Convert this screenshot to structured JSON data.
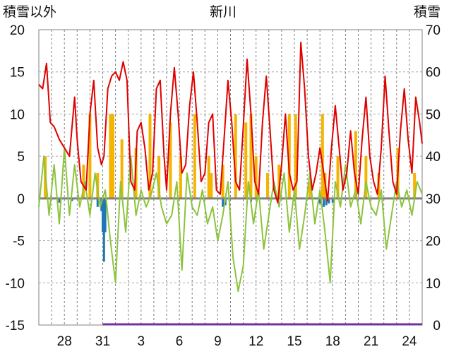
{
  "chart_data": {
    "type": "line",
    "title": "新川",
    "left_axis_label": "積雪以外",
    "right_axis_label": "積雪",
    "left_axis": {
      "ylim": [
        -15,
        20
      ],
      "ticks": [
        "20",
        "15",
        "10",
        "5",
        "0",
        "-5",
        "-10",
        "-15"
      ]
    },
    "right_axis": {
      "ylim": [
        0,
        70
      ],
      "ticks": [
        "70",
        "60",
        "50",
        "40",
        "30",
        "20",
        "10",
        "0"
      ]
    },
    "x_ticks": [
      "28",
      "31",
      "3",
      "6",
      "9",
      "12",
      "15",
      "18",
      "21",
      "24"
    ],
    "x_tick_days": [
      2,
      5,
      8,
      11,
      14,
      17,
      20,
      23,
      26,
      29
    ],
    "x_range_days": [
      0,
      30
    ],
    "grid": true,
    "colors": {
      "temp_max": "#e00000",
      "temp_diff": "#8cc43c",
      "precip": "#f5b400",
      "negative_bar": "#1f77b4",
      "snow": "#7030a0"
    },
    "series_red_max_temp": {
      "x": [
        0.0,
        0.3,
        0.6,
        0.9,
        1.2,
        1.6,
        2.0,
        2.4,
        2.8,
        3.0,
        3.3,
        3.7,
        4.0,
        4.3,
        4.6,
        4.9,
        5.1,
        5.4,
        5.7,
        6.0,
        6.3,
        6.6,
        6.9,
        7.2,
        7.5,
        7.7,
        8.0,
        8.3,
        8.6,
        8.9,
        9.2,
        9.5,
        9.8,
        10.0,
        10.3,
        10.6,
        10.9,
        11.2,
        11.5,
        11.8,
        12.1,
        12.4,
        12.7,
        13.0,
        13.3,
        13.6,
        13.9,
        14.2,
        14.5,
        14.8,
        15.1,
        15.4,
        15.7,
        16.0,
        16.3,
        16.6,
        16.9,
        17.2,
        17.5,
        17.8,
        18.1,
        18.4,
        18.7,
        19.0,
        19.3,
        19.6,
        19.9,
        20.2,
        20.5,
        20.8,
        21.1,
        21.4,
        21.7,
        22.0,
        22.3,
        22.6,
        22.9,
        23.2,
        23.5,
        23.8,
        24.1,
        24.4,
        24.7,
        25.0,
        25.3,
        25.6,
        25.9,
        26.2,
        26.5,
        26.8,
        27.1,
        27.4,
        27.7,
        28.0,
        28.3,
        28.6,
        28.9,
        29.2,
        29.5,
        29.8,
        30.0
      ],
      "y": [
        13.5,
        13.0,
        16.0,
        9.0,
        8.5,
        7.0,
        6.0,
        5.0,
        12.0,
        7.0,
        2.0,
        1.0,
        10.0,
        14.0,
        6.0,
        4.0,
        5.0,
        13.0,
        14.5,
        15.0,
        14.0,
        16.2,
        14.0,
        2.0,
        1.0,
        8.0,
        9.0,
        6.0,
        1.0,
        3.0,
        13.0,
        14.0,
        5.0,
        1.0,
        10.0,
        15.5,
        10.0,
        3.0,
        4.0,
        11.0,
        15.0,
        9.0,
        2.0,
        3.0,
        9.0,
        10.0,
        1.0,
        0.5,
        7.0,
        14.0,
        9.0,
        2.0,
        1.0,
        8.5,
        16.5,
        10.0,
        2.0,
        0.5,
        9.0,
        14.5,
        8.0,
        1.0,
        -0.5,
        4.0,
        10.0,
        3.0,
        1.0,
        2.0,
        18.5,
        13.0,
        5.0,
        1.0,
        3.0,
        6.0,
        3.0,
        -0.3,
        6.0,
        11.0,
        6.0,
        1.0,
        3.0,
        8.0,
        3.0,
        0.5,
        7.0,
        12.0,
        5.0,
        2.0,
        0.5,
        6.0,
        14.5,
        8.0,
        2.0,
        0.5,
        8.0,
        13.0,
        7.0,
        3.0,
        12.0,
        9.0,
        6.5
      ]
    },
    "series_green_diff": {
      "x": [
        0.0,
        0.4,
        0.8,
        1.2,
        1.6,
        2.0,
        2.4,
        2.8,
        3.2,
        3.6,
        4.0,
        4.4,
        4.8,
        5.2,
        5.6,
        6.0,
        6.4,
        6.8,
        7.2,
        7.6,
        8.0,
        8.4,
        8.8,
        9.2,
        9.6,
        10.0,
        10.4,
        10.8,
        11.2,
        11.6,
        12.0,
        12.4,
        12.8,
        13.2,
        13.6,
        14.0,
        14.4,
        14.8,
        15.2,
        15.6,
        16.0,
        16.4,
        16.8,
        17.2,
        17.6,
        18.0,
        18.4,
        18.8,
        19.2,
        19.6,
        20.0,
        20.4,
        20.8,
        21.2,
        21.6,
        22.0,
        22.4,
        22.8,
        23.2,
        23.6,
        24.0,
        24.4,
        24.8,
        25.2,
        25.6,
        26.0,
        26.4,
        26.8,
        27.2,
        27.6,
        28.0,
        28.4,
        28.8,
        29.2,
        29.6,
        30.0
      ],
      "y": [
        -1.0,
        5.0,
        -2.0,
        4.0,
        -3.0,
        6.0,
        -2.0,
        4.0,
        -1.0,
        2.0,
        -2.0,
        3.0,
        -1.0,
        1.0,
        -5.0,
        -10.0,
        2.0,
        -4.0,
        5.0,
        -2.0,
        1.0,
        -1.0,
        0.5,
        3.0,
        -1.0,
        -3.0,
        -2.0,
        2.0,
        -8.5,
        3.0,
        -1.0,
        -2.0,
        1.0,
        -3.0,
        -1.0,
        -5.0,
        -2.0,
        2.0,
        -7.0,
        -11.0,
        -8.0,
        2.0,
        -3.0,
        1.0,
        -6.0,
        -2.0,
        2.0,
        -1.0,
        3.0,
        -4.0,
        1.0,
        -6.0,
        -2.0,
        3.0,
        -3.0,
        1.0,
        -4.0,
        -10.0,
        2.0,
        -1.0,
        4.0,
        -1.0,
        1.0,
        -3.0,
        2.0,
        -1.0,
        -2.0,
        1.0,
        -6.0,
        -2.0,
        2.0,
        -1.0,
        1.0,
        -2.0,
        2.0,
        0.5
      ]
    },
    "series_yellow_precip": {
      "x": [
        0.5,
        3.5,
        4.0,
        4.6,
        5.6,
        5.8,
        6.5,
        7.6,
        8.7,
        9.4,
        10.3,
        11.1,
        12.2,
        13.3,
        13.5,
        14.4,
        15.4,
        16.2,
        16.6,
        17.0,
        17.9,
        18.8,
        19.6,
        20.1,
        21.2,
        22.2,
        22.4,
        23.4,
        24.8,
        25.6,
        26.6,
        28.1,
        29.4
      ],
      "y": [
        5.0,
        4.0,
        10.0,
        3.0,
        10.0,
        10.0,
        7.0,
        6.0,
        10.0,
        5.0,
        9.0,
        5.0,
        10.0,
        5.0,
        3.0,
        4.0,
        10.0,
        9.0,
        10.0,
        5.0,
        3.0,
        4.0,
        10.0,
        10.0,
        2.0,
        10.0,
        3.0,
        5.0,
        8.0,
        5.0,
        3.0,
        6.0,
        3.0
      ]
    },
    "series_blue_negative": {
      "x": [
        1.6,
        2.6,
        4.6,
        4.9,
        5.0,
        5.1,
        5.2,
        14.4,
        14.6,
        16.6,
        22.0,
        22.3,
        22.5,
        22.7,
        23.0
      ],
      "y": [
        -0.5,
        -0.3,
        -1.0,
        -1.5,
        -4.0,
        -7.5,
        -4.0,
        -1.0,
        -0.8,
        -0.4,
        -0.6,
        -1.0,
        -0.8,
        -0.6,
        -0.5
      ]
    },
    "series_purple_snow": {
      "x": [
        5.0,
        30.0
      ],
      "y": [
        0,
        0
      ]
    }
  }
}
